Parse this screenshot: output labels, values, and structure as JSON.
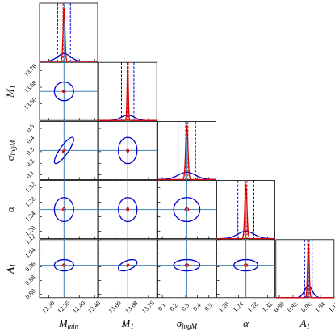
{
  "chart_data": {
    "type": "corner",
    "outer_color": "#0000cc",
    "inner_color": "#dd0000",
    "truth_color": "#4682b4",
    "params": [
      {
        "label": "M",
        "sub": "min",
        "lim": [
          12.27,
          12.46
        ],
        "ticks": [
          {
            "value": 12.3,
            "label": "12.30"
          },
          {
            "value": 12.35,
            "label": "12.35"
          },
          {
            "value": 12.4,
            "label": "12.40"
          },
          {
            "value": 12.45,
            "label": "12.45"
          }
        ],
        "truth": 12.35,
        "blue_sigma": 0.021,
        "red_sigma": 0.003
      },
      {
        "label": "M",
        "sub": "1",
        "lim": [
          13.52,
          13.8
        ],
        "ticks": [
          {
            "value": 13.6,
            "label": "13.60"
          },
          {
            "value": 13.68,
            "label": "13.68"
          },
          {
            "value": 13.76,
            "label": "13.76"
          }
        ],
        "truth": 13.66,
        "blue_sigma": 0.03,
        "red_sigma": 0.003
      },
      {
        "label": "σ",
        "sub": "logM",
        "lim": [
          0.06,
          0.56
        ],
        "ticks": [
          0.1,
          0.2,
          0.3,
          0.4,
          0.5
        ],
        "truth": 0.31,
        "blue_sigma": 0.075,
        "red_sigma": 0.01
      },
      {
        "label": "α",
        "sub": "",
        "lim": [
          1.18,
          1.34
        ],
        "ticks": [
          {
            "value": 1.2,
            "label": "1.20"
          },
          1.24,
          1.28,
          1.32
        ],
        "truth": 1.26,
        "blue_sigma": 0.022,
        "red_sigma": 0.003
      },
      {
        "label": "A",
        "sub": "1",
        "lim": [
          0.78,
          1.12
        ],
        "ticks": [
          {
            "value": 0.8,
            "label": "0.80"
          },
          0.88,
          0.96,
          1.04,
          1.12
        ],
        "truth": 0.97,
        "blue_sigma": 0.022,
        "red_sigma": 0.005
      }
    ],
    "correlations": [
      {
        "pair": [
          0,
          2
        ],
        "value": 0.85
      },
      {
        "pair": [
          1,
          4
        ],
        "value": 0.5
      }
    ]
  }
}
